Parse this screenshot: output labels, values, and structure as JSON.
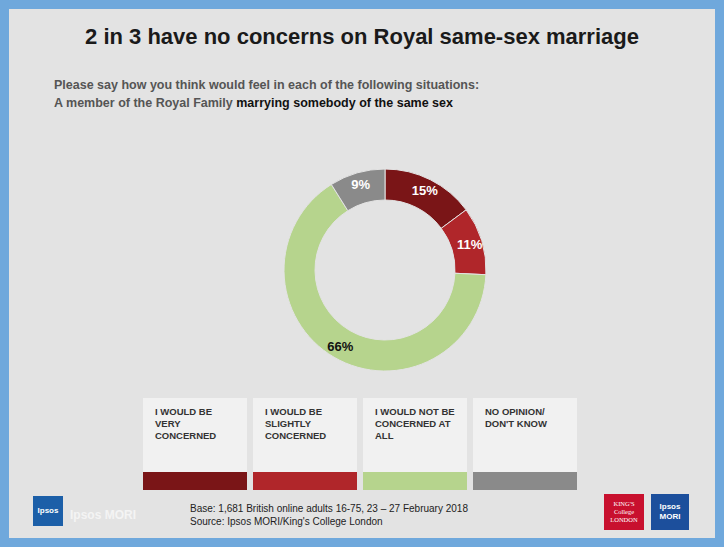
{
  "chart_data": {
    "type": "pie",
    "title": "2 in 3 have no concerns on Royal same-sex marriage",
    "subtitle": [
      [
        "Please say how you think would feel in each of the following situations:"
      ],
      [
        "A member of the Royal Family ",
        "marrying somebody of the same sex"
      ]
    ],
    "categories": [
      "I WOULD BE VERY CONCERNED",
      "I WOULD BE SLIGHTLY CONCERNED",
      "I WOULD NOT BE CONCERNED AT ALL",
      "NO OPINION/ DON'T KNOW"
    ],
    "values": [
      15,
      11,
      66,
      9
    ],
    "value_labels": [
      "15%",
      "11%",
      "66%",
      "9%"
    ],
    "colors": [
      "#7a1517",
      "#b0262a",
      "#b6d48d",
      "#8a8a8a"
    ],
    "data_labels": true,
    "legend": "bottom",
    "notes": [
      "Base: 1,681 British online adults 16-75, 23 – 27 February 2018",
      "Source: Ipsos MORI/King's College London"
    ],
    "logos": {
      "left": [
        "Ipsos",
        "Ipsos MORI"
      ],
      "right": [
        "KING'S College LONDON",
        "Ipsos MORI"
      ]
    }
  }
}
